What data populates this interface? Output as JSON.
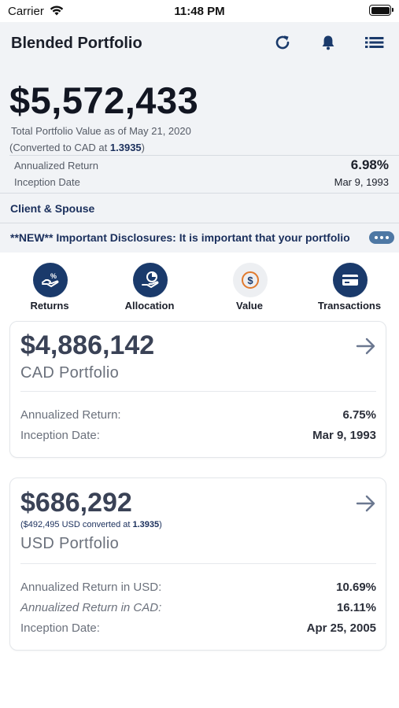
{
  "status_bar": {
    "carrier": "Carrier",
    "time": "11:48 PM",
    "wifi_icon": "wifi-icon",
    "battery_icon": "battery-icon"
  },
  "header": {
    "title": "Blended Portfolio",
    "icons": [
      "refresh-icon",
      "bell-icon",
      "list-menu-icon"
    ]
  },
  "summary": {
    "total_value": "$5,572,433",
    "total_label": "Total Portfolio Value as of May 21, 2020",
    "converted_prefix": "(Converted to CAD at ",
    "converted_rate": "1.3935",
    "converted_suffix": ")",
    "annualized_return_label": "Annualized Return",
    "annualized_return_value": "6.98%",
    "inception_label": "Inception Date",
    "inception_value": "Mar 9, 1993"
  },
  "client": "Client & Spouse",
  "disclosure": "**NEW** Important Disclosures:  It is important that your portfolio",
  "nav": [
    {
      "label": "Returns",
      "icon": "returns-icon"
    },
    {
      "label": "Allocation",
      "icon": "allocation-icon"
    },
    {
      "label": "Value",
      "icon": "dollar-value-icon"
    },
    {
      "label": "Transactions",
      "icon": "card-transactions-icon"
    }
  ],
  "cards": [
    {
      "amount": "$4,886,142",
      "name": "CAD Portfolio",
      "rows": [
        {
          "label": "Annualized Return:",
          "value": "6.75%"
        },
        {
          "label": "Inception Date:",
          "value": "Mar 9, 1993"
        }
      ]
    },
    {
      "amount": "$686,292",
      "sub_prefix": "($492,495 USD converted at ",
      "sub_rate": "1.3935",
      "sub_suffix": ")",
      "name": "USD Portfolio",
      "rows": [
        {
          "label": "Annualized Return in USD:",
          "value": "10.69%"
        },
        {
          "label": "Annualized Return in CAD:",
          "value": "16.11%"
        },
        {
          "label": "Inception Date:",
          "value": "Apr 25, 2005"
        }
      ]
    }
  ],
  "colors": {
    "navy": "#1a3a6b",
    "accent_text": "#1a2f5c",
    "value_orange": "#e07a2e",
    "panel_bg": "#f1f3f6"
  }
}
